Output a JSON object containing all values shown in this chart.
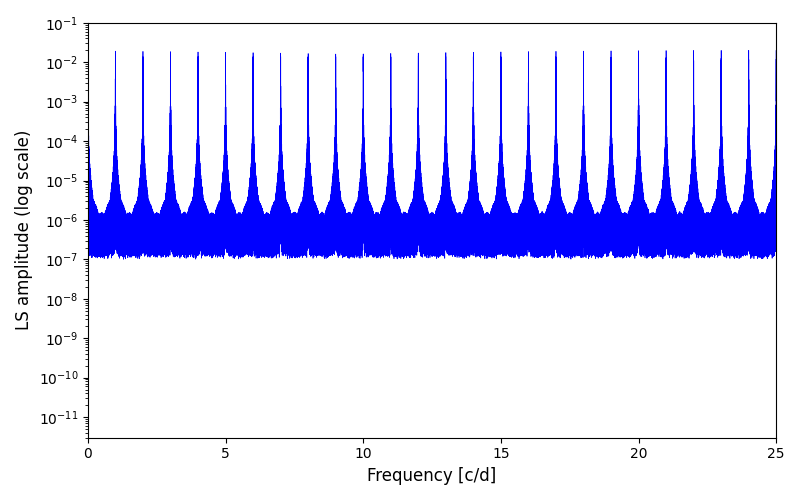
{
  "xlabel": "Frequency [c/d]",
  "ylabel": "LS amplitude (log scale)",
  "xlim": [
    0,
    25
  ],
  "ylim": [
    3e-12,
    0.1
  ],
  "line_color": "blue",
  "line_width": 0.5,
  "background_color": "#ffffff",
  "figsize": [
    8.0,
    5.0
  ],
  "dpi": 100,
  "freq_max": 25.0,
  "n_freq": 50000
}
